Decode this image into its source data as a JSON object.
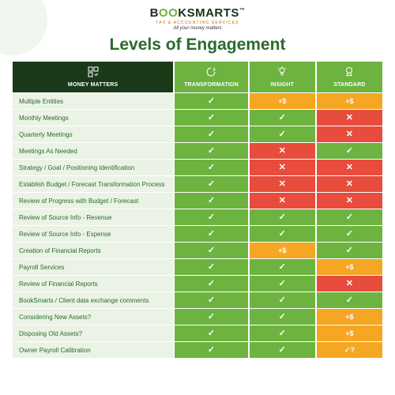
{
  "logo": {
    "brand_pre": "B",
    "brand_oo": "OO",
    "brand_post": "KSMARTS",
    "sub": "TAX & ACCOUNTING SERVICES",
    "tagline": "All your money matters"
  },
  "title": "Levels of Engagement",
  "columns": {
    "main": "MONEY MATTERS",
    "t": "TRANSFORMATION",
    "i": "INSIGHT",
    "s": "STANDARD"
  },
  "colors": {
    "g": "#6db33f",
    "o": "#f5a623",
    "r": "#e74c3c",
    "hdr": "#1a3a1a",
    "rowbg": "#eaf3e5",
    "title": "#2a6b2a"
  },
  "icons": {
    "check": "✓",
    "cross": "✕",
    "plus": "+$",
    "qcheck": "✓?"
  },
  "rows": [
    {
      "label": "Multiple Entities",
      "t": [
        "g",
        "check"
      ],
      "i": [
        "o",
        "plus"
      ],
      "s": [
        "o",
        "plus"
      ]
    },
    {
      "label": "Monthly Meetings",
      "t": [
        "g",
        "check"
      ],
      "i": [
        "g",
        "check"
      ],
      "s": [
        "r",
        "cross"
      ]
    },
    {
      "label": "Quarterly Meetings",
      "t": [
        "g",
        "check"
      ],
      "i": [
        "g",
        "check"
      ],
      "s": [
        "r",
        "cross"
      ]
    },
    {
      "label": "Meetings As Needed",
      "t": [
        "g",
        "check"
      ],
      "i": [
        "r",
        "cross"
      ],
      "s": [
        "g",
        "check"
      ]
    },
    {
      "label": "Strategy / Goal / Positioning Identification",
      "t": [
        "g",
        "check"
      ],
      "i": [
        "r",
        "cross"
      ],
      "s": [
        "r",
        "cross"
      ]
    },
    {
      "label": "Establish Budget / Forecast Transformation Process",
      "t": [
        "g",
        "check"
      ],
      "i": [
        "r",
        "cross"
      ],
      "s": [
        "r",
        "cross"
      ]
    },
    {
      "label": "Review of Progress with Budget / Forecast",
      "t": [
        "g",
        "check"
      ],
      "i": [
        "r",
        "cross"
      ],
      "s": [
        "r",
        "cross"
      ]
    },
    {
      "label": "Review of Source Info - Revenue",
      "t": [
        "g",
        "check"
      ],
      "i": [
        "g",
        "check"
      ],
      "s": [
        "g",
        "check"
      ]
    },
    {
      "label": "Review of Source Info - Expense",
      "t": [
        "g",
        "check"
      ],
      "i": [
        "g",
        "check"
      ],
      "s": [
        "g",
        "check"
      ]
    },
    {
      "label": "Creation of Financial Reports",
      "t": [
        "g",
        "check"
      ],
      "i": [
        "o",
        "plus"
      ],
      "s": [
        "g",
        "check"
      ]
    },
    {
      "label": "Payroll Services",
      "t": [
        "g",
        "check"
      ],
      "i": [
        "g",
        "check"
      ],
      "s": [
        "o",
        "plus"
      ]
    },
    {
      "label": "Review of Financial Reports",
      "t": [
        "g",
        "check"
      ],
      "i": [
        "g",
        "check"
      ],
      "s": [
        "r",
        "cross"
      ]
    },
    {
      "label": "BookSmarts / Client data exchange comments",
      "t": [
        "g",
        "check"
      ],
      "i": [
        "g",
        "check"
      ],
      "s": [
        "g",
        "check"
      ]
    },
    {
      "label": "Considering New Assets?",
      "t": [
        "g",
        "check"
      ],
      "i": [
        "g",
        "check"
      ],
      "s": [
        "o",
        "plus"
      ]
    },
    {
      "label": "Disposing Old Assets?",
      "t": [
        "g",
        "check"
      ],
      "i": [
        "g",
        "check"
      ],
      "s": [
        "o",
        "plus"
      ]
    },
    {
      "label": "Owner Payroll Calibration",
      "t": [
        "g",
        "check"
      ],
      "i": [
        "g",
        "check"
      ],
      "s": [
        "o",
        "qcheck"
      ]
    }
  ]
}
